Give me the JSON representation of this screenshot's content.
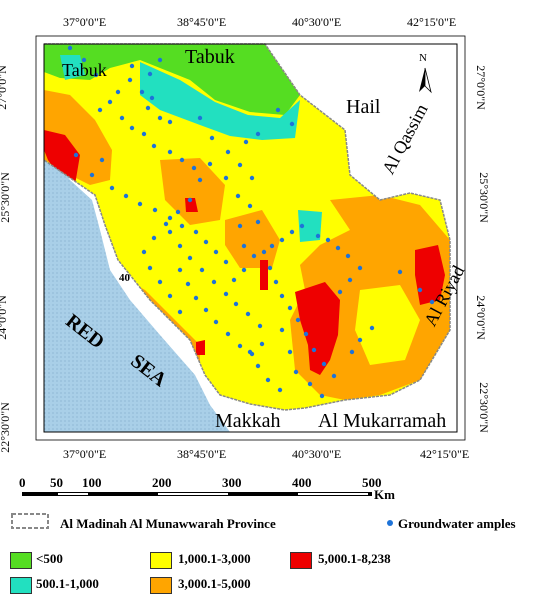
{
  "map": {
    "coords_top": [
      "37°0'0\"E",
      "38°45'0\"E",
      "40°30'0\"E",
      "42°15'0\"E"
    ],
    "coords_bottom": [
      "37°0'0\"E",
      "38°45'0\"E",
      "40°30'0\"E",
      "42°15'0\"E"
    ],
    "coords_left": [
      "27°0'0\"N",
      "25°30'0\"N",
      "24°0'0\"N",
      "22°30'0\"N"
    ],
    "coords_right": [
      "27°0'0\"N",
      "25°30'0\"N",
      "24°0'0\"N",
      "22°30'0\"N"
    ],
    "north_label": "N",
    "places": {
      "tabuk_region": "Tabuk",
      "tabuk_city": "Tabuk",
      "hail": "Hail",
      "al_qassim": "Al Qassim",
      "al_riyad": "Al Riyad",
      "makkah": "Makkah",
      "al_mukarramah": "Al Mukarramah",
      "red": "RED",
      "sea": "SEA",
      "label_40": "40"
    }
  },
  "scale_bar": {
    "ticks": [
      "0",
      "50",
      "100",
      "200",
      "300",
      "400",
      "500"
    ],
    "unit": "Km"
  },
  "legend": {
    "province": "Al Madinah Al Munawwarah Province",
    "samples": "Groundwater amples",
    "classes": [
      {
        "label": "<500",
        "color": "#55dd22"
      },
      {
        "label": "500.1-1,000",
        "color": "#22e0c0"
      },
      {
        "label": "1,000.1-3,000",
        "color": "#ffff00"
      },
      {
        "label": "3,000.1-5,000",
        "color": "#ffa500"
      },
      {
        "label": "5,000.1-8,238",
        "color": "#ee0000"
      }
    ]
  },
  "colors": {
    "sea": "#a9cfe8",
    "outside": "#ffffff",
    "sample_point": "#1e73d8"
  }
}
